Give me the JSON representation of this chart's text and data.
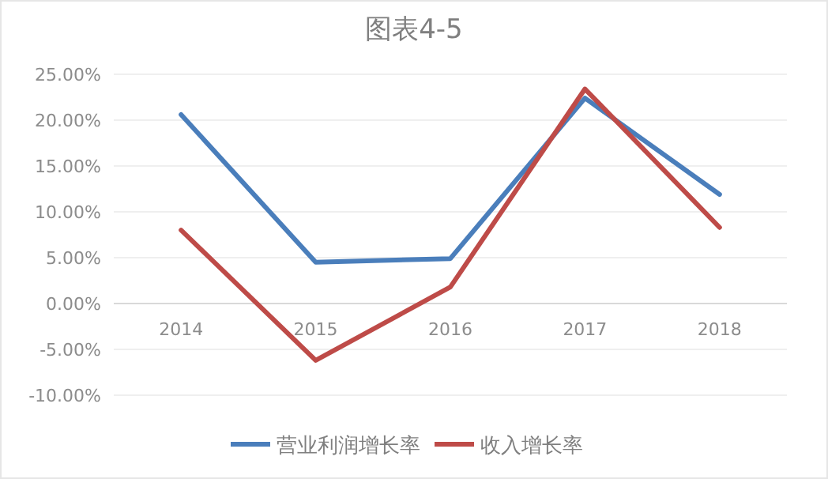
{
  "chart_data": {
    "type": "line",
    "title": "图表4-5",
    "categories": [
      "2014",
      "2015",
      "2016",
      "2017",
      "2018"
    ],
    "series": [
      {
        "name": "营业利润增长率",
        "color": "#4a7ebb",
        "values": [
          20.6,
          4.5,
          4.9,
          22.4,
          11.9
        ]
      },
      {
        "name": "收入增长率",
        "color": "#be4b48",
        "values": [
          8.0,
          -6.2,
          1.8,
          23.4,
          8.3
        ]
      }
    ],
    "ylim": [
      -10,
      25
    ],
    "yticks": [
      {
        "value": -10,
        "label": "-10.00%"
      },
      {
        "value": -5,
        "label": "-5.00%"
      },
      {
        "value": 0,
        "label": "0.00%"
      },
      {
        "value": 5,
        "label": "5.00%"
      },
      {
        "value": 10,
        "label": "10.00%"
      },
      {
        "value": 15,
        "label": "15.00%"
      },
      {
        "value": 20,
        "label": "20.00%"
      },
      {
        "value": 25,
        "label": "25.00%"
      }
    ],
    "grid": "y",
    "legend": "bottom",
    "marker": "none",
    "line_style": "solid"
  }
}
